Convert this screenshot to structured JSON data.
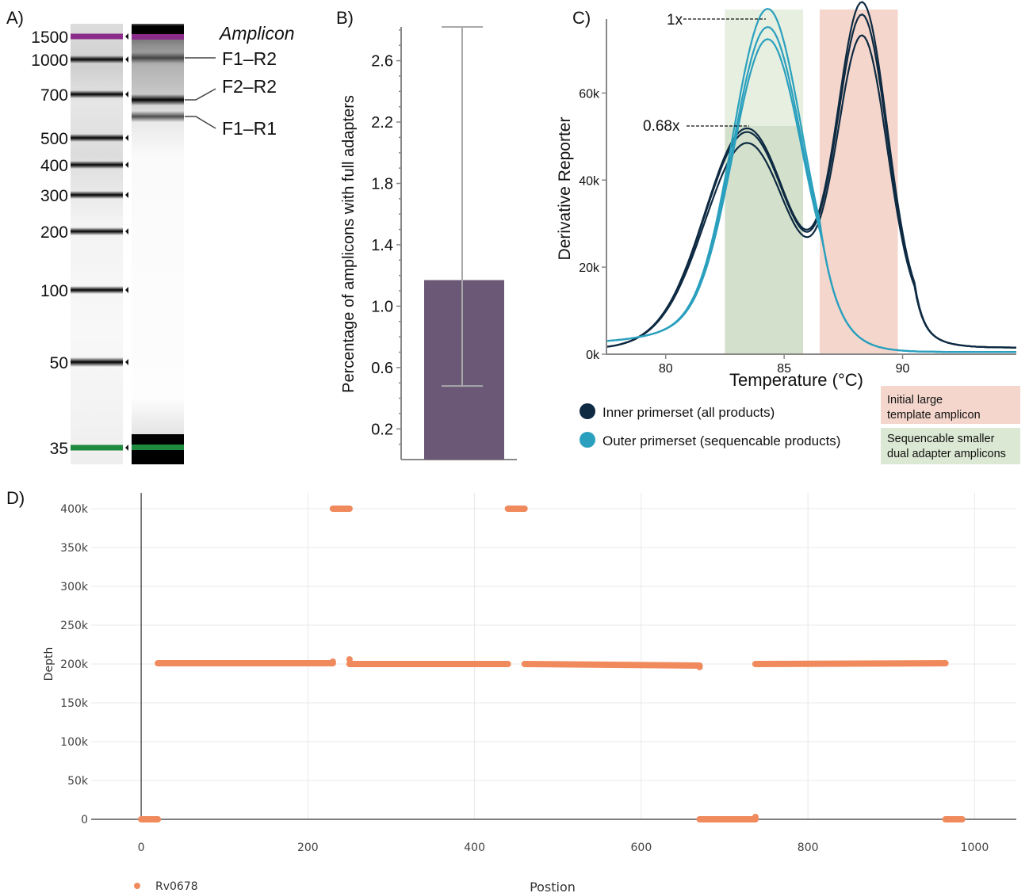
{
  "panel_labels": {
    "a": "A)",
    "b": "B)",
    "c": "C)",
    "d": "D)"
  },
  "colors": {
    "purple_marker": "#8b2c8b",
    "green_marker": "#1e8a3e",
    "bar": "#6b5877",
    "errorbar": "#a8a8a8",
    "inner": "#0d2a42",
    "outer": "#2aa0be",
    "pink_band": "#f4d6cc",
    "green_band": "#dbe8d3",
    "scatter": "#f08a5d"
  },
  "chart_data": [
    {
      "type": "table",
      "panel": "A",
      "title": "Amplicon",
      "ladder_labels": [
        "1500",
        "1000",
        "700",
        "500",
        "400",
        "300",
        "200",
        "100",
        "50",
        "35"
      ],
      "amplicon_labels": [
        "F1–R2",
        "F2–R2",
        "F1–R1"
      ]
    },
    {
      "type": "bar",
      "panel": "B",
      "ylabel": "Percentage of amplicons with full adapters",
      "yticks": [
        "0.2",
        "0.6",
        "1.0",
        "1.4",
        "1.8",
        "2.2",
        "2.6"
      ],
      "ylim": [
        0.0,
        2.82
      ],
      "value": 1.17,
      "error_low": 0.48,
      "error_high": 2.82
    },
    {
      "type": "line",
      "panel": "C",
      "xlabel": "Temperature (°C)",
      "ylabel": "Derivative Reporter",
      "xticks": [
        "80",
        "85",
        "90"
      ],
      "yticks": [
        "0k",
        "20k",
        "40k",
        "60k"
      ],
      "xlim": [
        77.5,
        94.8
      ],
      "ylim": [
        0,
        77000
      ],
      "annotations": [
        "1x",
        "0.68x"
      ],
      "legend": [
        "Inner primerset (all products)",
        "Outer primerset (sequencable products)"
      ],
      "bands": [
        "Initial large\ntemplate amplicon",
        "Sequencable smaller\ndual adapter amplicons"
      ],
      "band_ranges": [
        [
          86.5,
          89.8
        ],
        [
          82.5,
          85.8
        ]
      ],
      "series": [
        {
          "name": "Inner primerset (all products)",
          "peak1": [
            83.4,
            52500
          ],
          "peak2": [
            88.3,
            75500
          ]
        },
        {
          "name": "Inner primerset (all products)",
          "peak1": [
            83.4,
            51500
          ],
          "peak2": [
            88.3,
            72500
          ]
        },
        {
          "name": "Inner primerset (all products)",
          "peak1": [
            83.4,
            48500
          ],
          "peak2": [
            88.3,
            67500
          ]
        },
        {
          "name": "Outer primerset (sequencable products)",
          "peak": [
            84.3,
            77000
          ]
        },
        {
          "name": "Outer primerset (sequencable products)",
          "peak": [
            84.3,
            72500
          ]
        },
        {
          "name": "Outer primerset (sequencable products)",
          "peak": [
            84.3,
            69500
          ]
        }
      ]
    },
    {
      "type": "scatter",
      "panel": "D",
      "xlabel": "Postion",
      "ylabel": "Depth",
      "xticks": [
        "0",
        "200",
        "400",
        "600",
        "800",
        "1000"
      ],
      "yticks": [
        "0",
        "50k",
        "100k",
        "150k",
        "200k",
        "250k",
        "300k",
        "350k",
        "400k"
      ],
      "xlim": [
        -60,
        1050
      ],
      "ylim": [
        0,
        400000
      ],
      "legend": "Rv0678",
      "segments": [
        {
          "x": [
            0,
            20
          ],
          "y": [
            0,
            0
          ]
        },
        {
          "x": [
            20,
            230
          ],
          "y": [
            201000,
            201000
          ]
        },
        {
          "x": [
            230,
            250
          ],
          "y": [
            400000,
            400000
          ]
        },
        {
          "x": [
            250,
            440
          ],
          "y": [
            200000,
            200000
          ]
        },
        {
          "x": [
            440,
            460
          ],
          "y": [
            400000,
            400000
          ]
        },
        {
          "x": [
            460,
            670
          ],
          "y": [
            200000,
            198000
          ]
        },
        {
          "x": [
            670,
            737
          ],
          "y": [
            0,
            0
          ]
        },
        {
          "x": [
            737,
            965
          ],
          "y": [
            200000,
            201000
          ]
        },
        {
          "x": [
            965,
            985
          ],
          "y": [
            0,
            0
          ]
        }
      ],
      "points": [
        [
          230,
          203000
        ],
        [
          250,
          206000
        ],
        [
          670,
          196000
        ],
        [
          737,
          3000
        ]
      ]
    }
  ]
}
